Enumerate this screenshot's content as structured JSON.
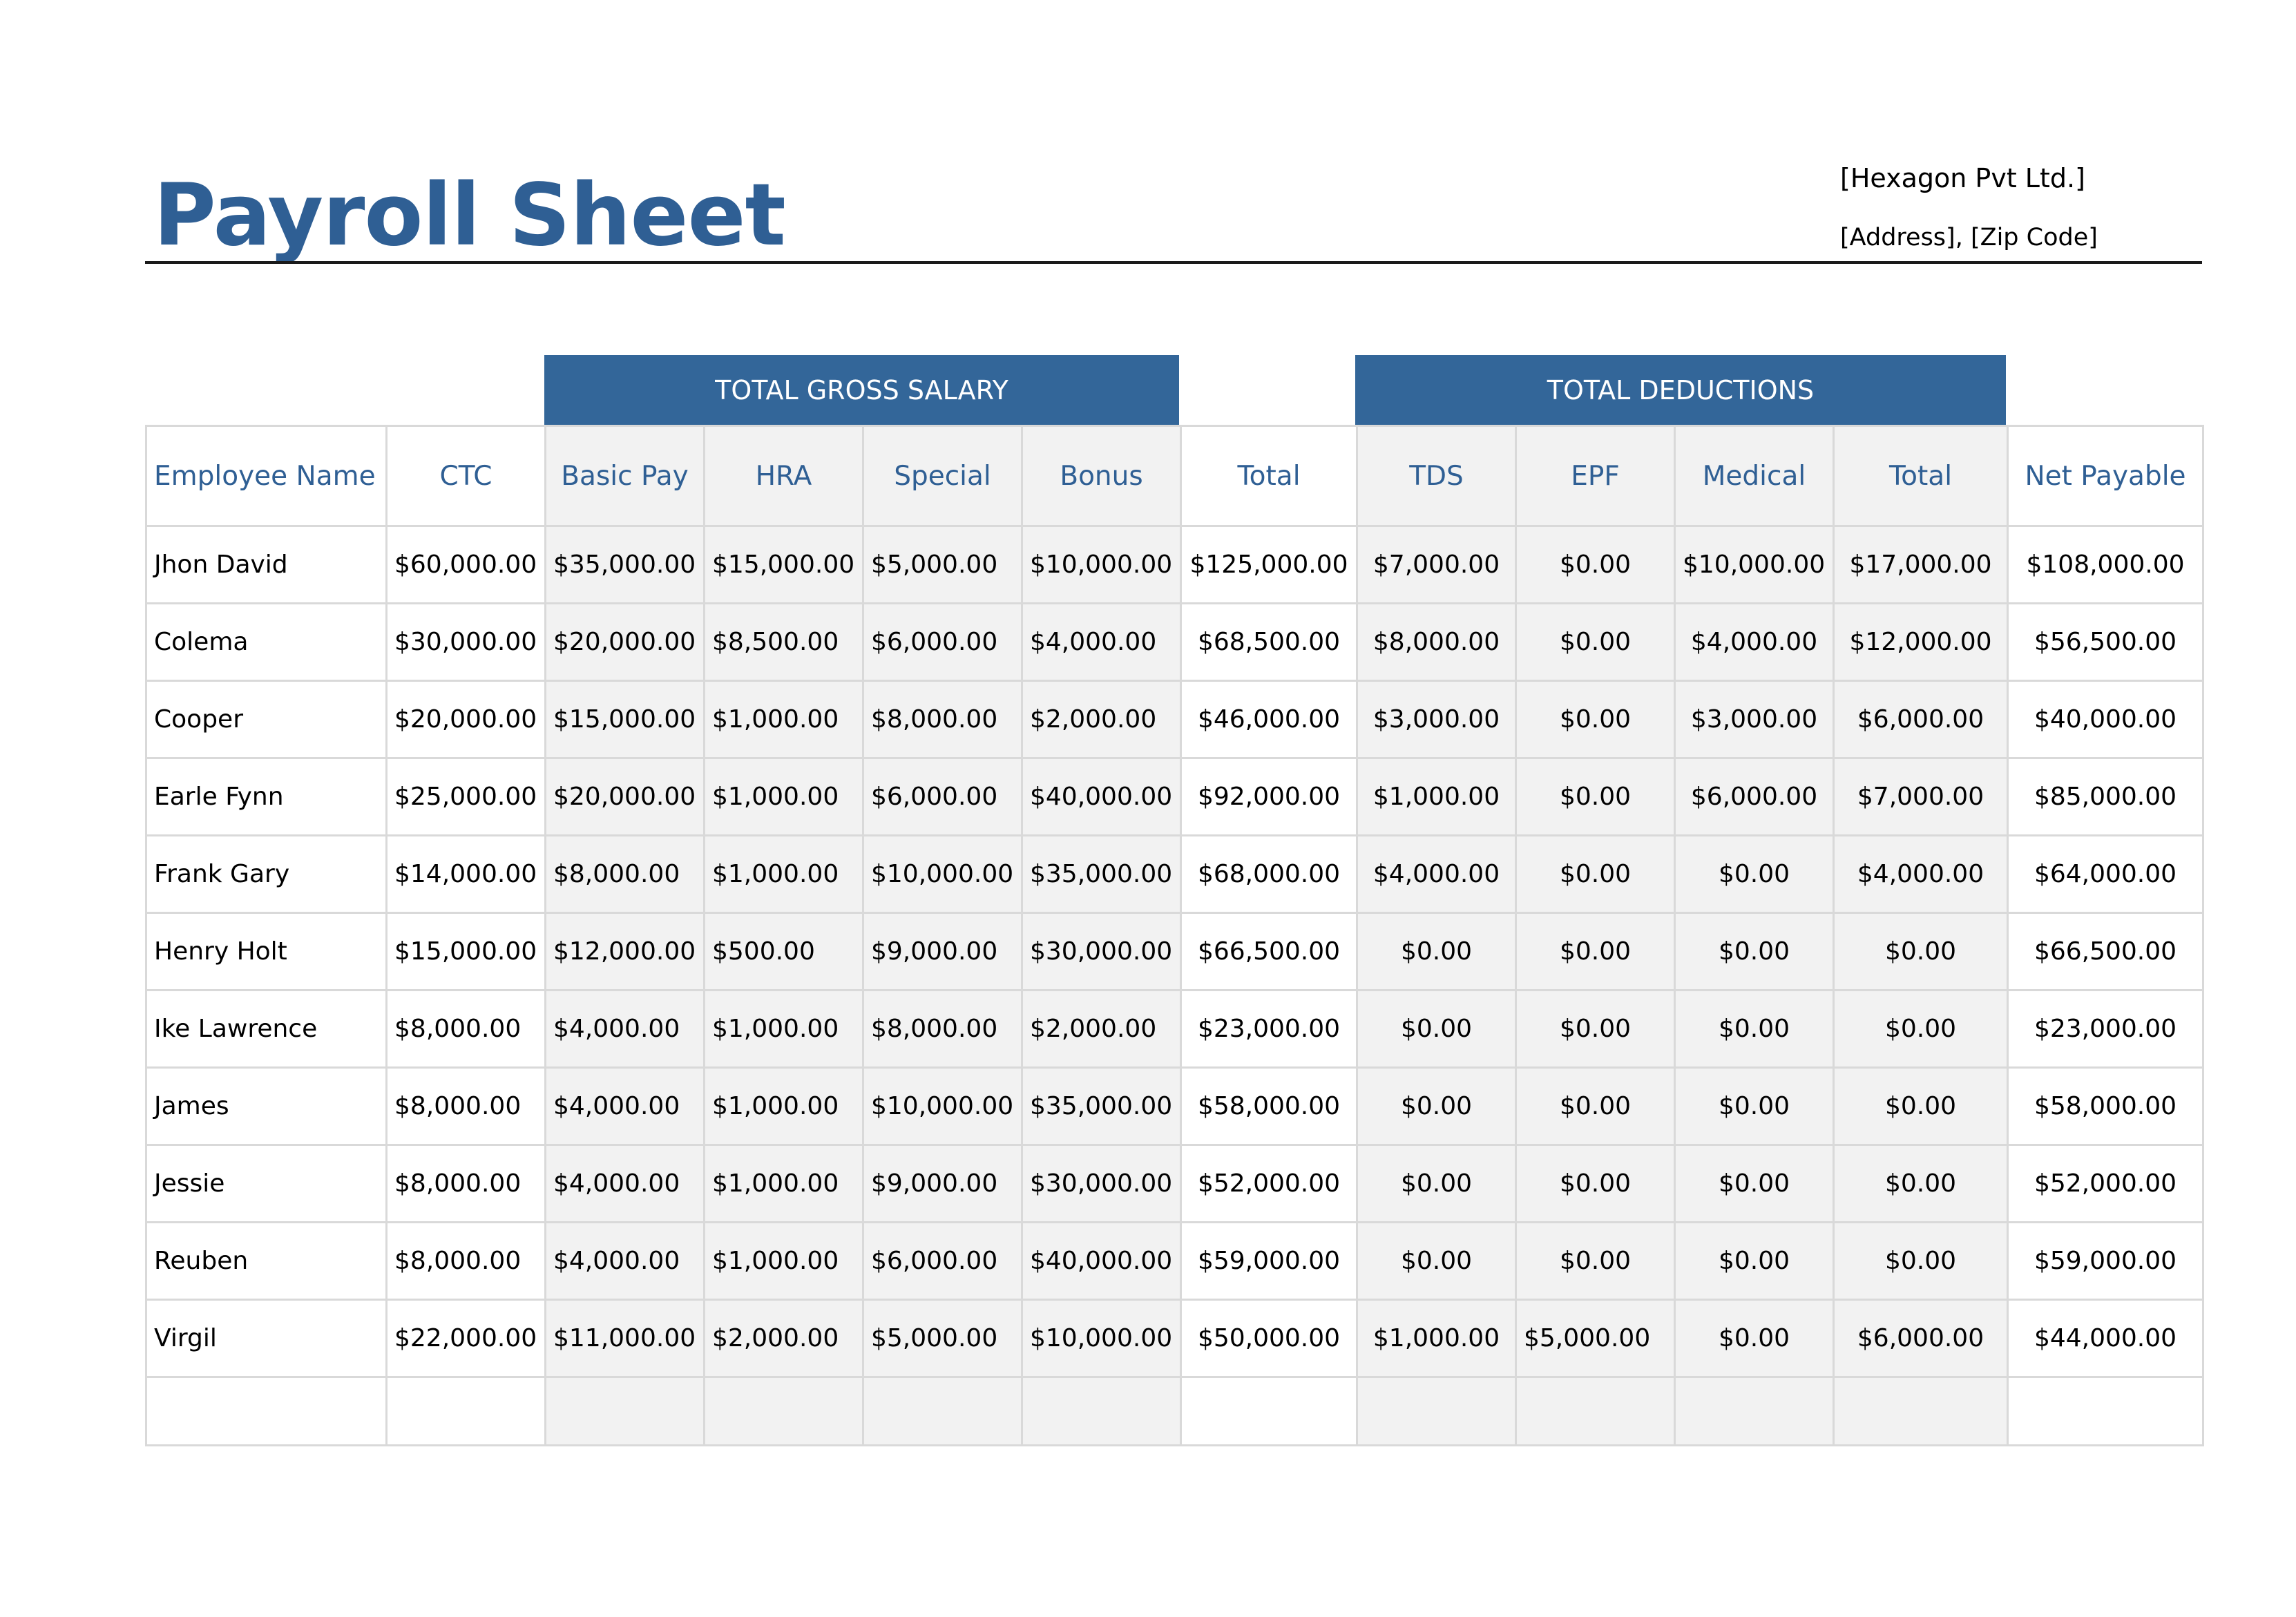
{
  "header": {
    "title": "Payroll Sheet",
    "company": "[Hexagon Pvt Ltd.]",
    "address": "[Address], [Zip Code]"
  },
  "groups": {
    "gross": "TOTAL GROSS SALARY",
    "deductions": "TOTAL DEDUCTIONS"
  },
  "columns": [
    "Employee  Name",
    "CTC",
    "Basic Pay",
    "HRA",
    "Special",
    "Bonus",
    "Total",
    "TDS",
    "EPF",
    "Medical",
    "Total",
    "Net Payable"
  ],
  "rows": [
    [
      "Jhon David",
      "$60,000.00",
      "$35,000.00",
      "$15,000.00",
      "$5,000.00",
      "$10,000.00",
      "$125,000.00",
      "$7,000.00",
      "$0.00",
      "$10,000.00",
      "$17,000.00",
      "$108,000.00"
    ],
    [
      "Colema",
      "$30,000.00",
      "$20,000.00",
      "$8,500.00",
      "$6,000.00",
      "$4,000.00",
      "$68,500.00",
      "$8,000.00",
      "$0.00",
      "$4,000.00",
      "$12,000.00",
      "$56,500.00"
    ],
    [
      "Cooper",
      "$20,000.00",
      "$15,000.00",
      "$1,000.00",
      "$8,000.00",
      "$2,000.00",
      "$46,000.00",
      "$3,000.00",
      "$0.00",
      "$3,000.00",
      "$6,000.00",
      "$40,000.00"
    ],
    [
      "Earle Fynn",
      "$25,000.00",
      "$20,000.00",
      "$1,000.00",
      "$6,000.00",
      "$40,000.00",
      "$92,000.00",
      "$1,000.00",
      "$0.00",
      "$6,000.00",
      "$7,000.00",
      "$85,000.00"
    ],
    [
      "Frank Gary",
      "$14,000.00",
      "$8,000.00",
      "$1,000.00",
      "$10,000.00",
      "$35,000.00",
      "$68,000.00",
      "$4,000.00",
      "$0.00",
      "$0.00",
      "$4,000.00",
      "$64,000.00"
    ],
    [
      "Henry Holt",
      "$15,000.00",
      "$12,000.00",
      "$500.00",
      "$9,000.00",
      "$30,000.00",
      "$66,500.00",
      "$0.00",
      "$0.00",
      "$0.00",
      "$0.00",
      "$66,500.00"
    ],
    [
      "Ike Lawrence",
      "$8,000.00",
      "$4,000.00",
      "$1,000.00",
      "$8,000.00",
      "$2,000.00",
      "$23,000.00",
      "$0.00",
      "$0.00",
      "$0.00",
      "$0.00",
      "$23,000.00"
    ],
    [
      "James",
      "$8,000.00",
      "$4,000.00",
      "$1,000.00",
      "$10,000.00",
      "$35,000.00",
      "$58,000.00",
      "$0.00",
      "$0.00",
      "$0.00",
      "$0.00",
      "$58,000.00"
    ],
    [
      "Jessie",
      "$8,000.00",
      "$4,000.00",
      "$1,000.00",
      "$9,000.00",
      "$30,000.00",
      "$52,000.00",
      "$0.00",
      "$0.00",
      "$0.00",
      "$0.00",
      "$52,000.00"
    ],
    [
      "Reuben",
      "$8,000.00",
      "$4,000.00",
      "$1,000.00",
      "$6,000.00",
      "$40,000.00",
      "$59,000.00",
      "$0.00",
      "$0.00",
      "$0.00",
      "$0.00",
      "$59,000.00"
    ],
    [
      "Virgil",
      "$22,000.00",
      "$11,000.00",
      "$2,000.00",
      "$5,000.00",
      "$10,000.00",
      "$50,000.00",
      "$1,000.00",
      "$5,000.00",
      "$0.00",
      "$6,000.00",
      "$44,000.00"
    ]
  ],
  "colors": {
    "title": "#2f5f94",
    "band": "#336699",
    "shade": "#f2f2f2",
    "grid": "#d9d9d9"
  }
}
